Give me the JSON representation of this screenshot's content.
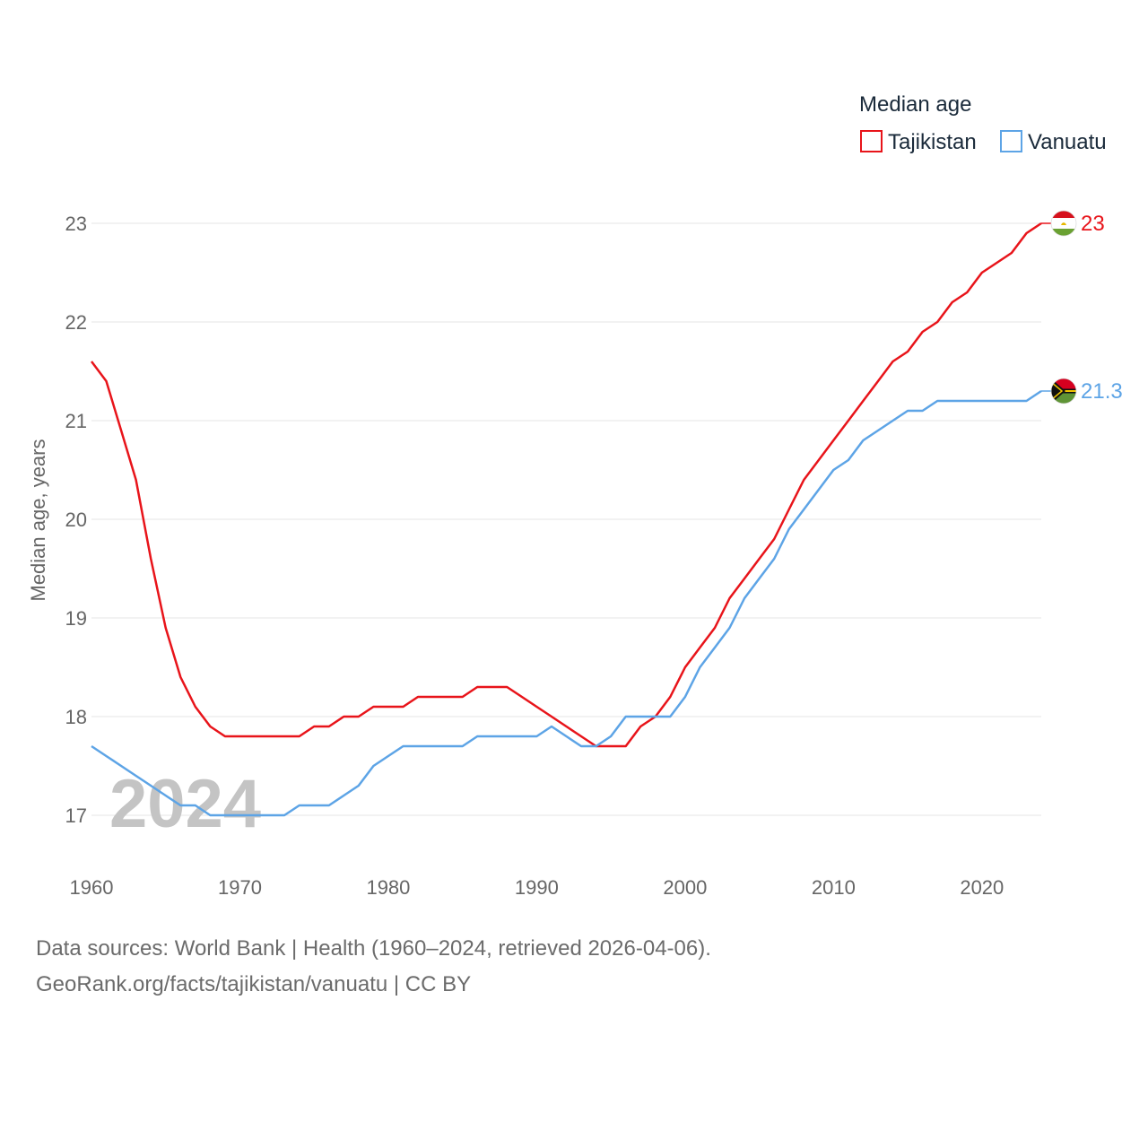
{
  "chart_data": {
    "type": "line",
    "ylabel": "Median age, years",
    "legend_title": "Median age",
    "year_label": "2024",
    "xlim": [
      1960,
      2024
    ],
    "ylim": [
      16.5,
      23.1
    ],
    "x_ticks": [
      1960,
      1970,
      1980,
      1990,
      2000,
      2010,
      2020
    ],
    "y_ticks": [
      17,
      18,
      19,
      20,
      21,
      22,
      23
    ],
    "x": [
      1960,
      1961,
      1962,
      1963,
      1964,
      1965,
      1966,
      1967,
      1968,
      1969,
      1970,
      1971,
      1972,
      1973,
      1974,
      1975,
      1976,
      1977,
      1978,
      1979,
      1980,
      1981,
      1982,
      1983,
      1984,
      1985,
      1986,
      1987,
      1988,
      1989,
      1990,
      1991,
      1992,
      1993,
      1994,
      1995,
      1996,
      1997,
      1998,
      1999,
      2000,
      2001,
      2002,
      2003,
      2004,
      2005,
      2006,
      2007,
      2008,
      2009,
      2010,
      2011,
      2012,
      2013,
      2014,
      2015,
      2016,
      2017,
      2018,
      2019,
      2020,
      2021,
      2022,
      2023,
      2024
    ],
    "series": [
      {
        "name": "Tajikistan",
        "color": "#e8141a",
        "end_label": "23",
        "values": [
          21.6,
          21.4,
          20.9,
          20.4,
          19.6,
          18.9,
          18.4,
          18.1,
          17.9,
          17.8,
          17.8,
          17.8,
          17.8,
          17.8,
          17.8,
          17.9,
          17.9,
          18.0,
          18.0,
          18.1,
          18.1,
          18.1,
          18.2,
          18.2,
          18.2,
          18.2,
          18.3,
          18.3,
          18.3,
          18.2,
          18.1,
          18.0,
          17.9,
          17.8,
          17.7,
          17.7,
          17.7,
          17.9,
          18.0,
          18.2,
          18.5,
          18.7,
          18.9,
          19.2,
          19.4,
          19.6,
          19.8,
          20.1,
          20.4,
          20.6,
          20.8,
          21.0,
          21.2,
          21.4,
          21.6,
          21.7,
          21.9,
          22.0,
          22.2,
          22.3,
          22.5,
          22.6,
          22.7,
          22.9,
          23.0
        ]
      },
      {
        "name": "Vanuatu",
        "color": "#5da4e6",
        "end_label": "21.3",
        "values": [
          17.7,
          17.6,
          17.5,
          17.4,
          17.3,
          17.2,
          17.1,
          17.1,
          17.0,
          17.0,
          17.0,
          17.0,
          17.0,
          17.0,
          17.1,
          17.1,
          17.1,
          17.2,
          17.3,
          17.5,
          17.6,
          17.7,
          17.7,
          17.7,
          17.7,
          17.7,
          17.8,
          17.8,
          17.8,
          17.8,
          17.8,
          17.9,
          17.8,
          17.7,
          17.7,
          17.8,
          18.0,
          18.0,
          18.0,
          18.0,
          18.2,
          18.5,
          18.7,
          18.9,
          19.2,
          19.4,
          19.6,
          19.9,
          20.1,
          20.3,
          20.5,
          20.6,
          20.8,
          20.9,
          21.0,
          21.1,
          21.1,
          21.2,
          21.2,
          21.2,
          21.2,
          21.2,
          21.2,
          21.2,
          21.3
        ]
      }
    ]
  },
  "footer": {
    "line1": "Data sources: World Bank | Health (1960–2024, retrieved 2026-04-06).",
    "line2": "GeoRank.org/facts/tajikistan/vanuatu | CC BY"
  }
}
